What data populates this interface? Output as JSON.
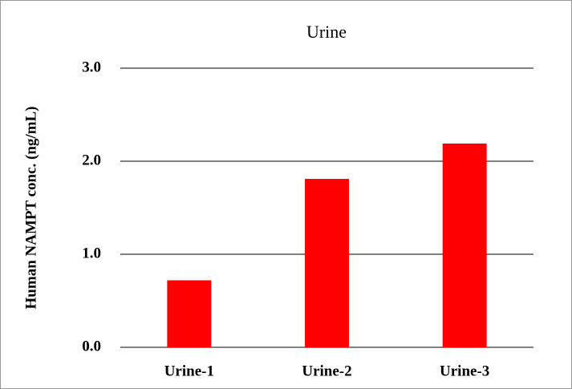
{
  "chart_data": {
    "type": "bar",
    "title": "Urine",
    "y_label": "Human NAMPT conc. (ng/mL)",
    "categories": [
      "Urine-1",
      "Urine-2",
      "Urine-3"
    ],
    "values": [
      0.72,
      1.81,
      2.19
    ],
    "color": "#ff0000",
    "ylim": [
      0,
      3
    ],
    "yticks": [
      {
        "value": 0,
        "label": "0.0"
      },
      {
        "value": 1,
        "label": "1.0"
      },
      {
        "value": 2,
        "label": "2.0"
      },
      {
        "value": 3,
        "label": "3.0"
      }
    ],
    "grid": true
  }
}
